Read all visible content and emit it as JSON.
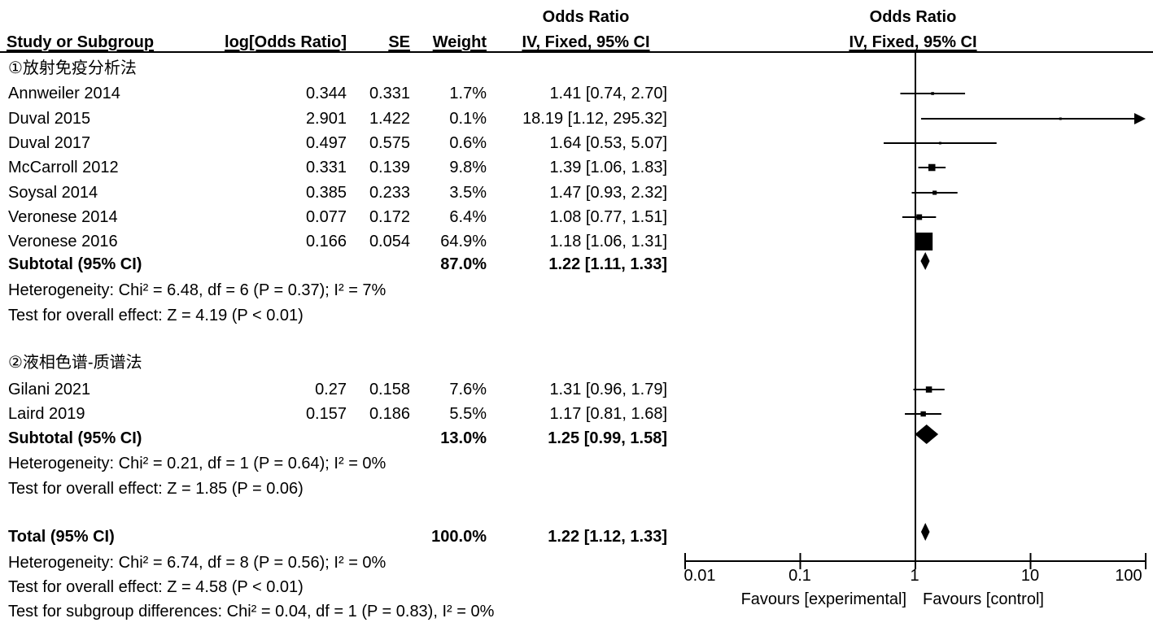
{
  "header": {
    "col_study": "Study or Subgroup",
    "col_logor": "log[Odds Ratio]",
    "col_se": "SE",
    "col_weight": "Weight",
    "col_or_top": "Odds Ratio",
    "col_or_bottom": "IV, Fixed, 95% CI",
    "plot_top": "Odds Ratio",
    "plot_bottom": "IV, Fixed, 95% CI"
  },
  "groups": [
    {
      "title": "①放射免疫分析法",
      "studies": [
        {
          "name": "Annweiler 2014",
          "logor": "0.344",
          "se": "0.331",
          "weight": "1.7%",
          "ci": "1.41 [0.74, 2.70]"
        },
        {
          "name": "Duval 2015",
          "logor": "2.901",
          "se": "1.422",
          "weight": "0.1%",
          "ci": "18.19 [1.12, 295.32]"
        },
        {
          "name": "Duval 2017",
          "logor": "0.497",
          "se": "0.575",
          "weight": "0.6%",
          "ci": "1.64 [0.53, 5.07]"
        },
        {
          "name": "McCarroll 2012",
          "logor": "0.331",
          "se": "0.139",
          "weight": "9.8%",
          "ci": "1.39 [1.06, 1.83]"
        },
        {
          "name": "Soysal 2014",
          "logor": "0.385",
          "se": "0.233",
          "weight": "3.5%",
          "ci": "1.47 [0.93, 2.32]"
        },
        {
          "name": "Veronese 2014",
          "logor": "0.077",
          "se": "0.172",
          "weight": "6.4%",
          "ci": "1.08 [0.77, 1.51]"
        },
        {
          "name": "Veronese 2016",
          "logor": "0.166",
          "se": "0.054",
          "weight": "64.9%",
          "ci": "1.18 [1.06, 1.31]"
        }
      ],
      "subtotal": {
        "label": "Subtotal (95% CI)",
        "weight": "87.0%",
        "ci": "1.22 [1.11, 1.33]"
      },
      "heterogeneity": "Heterogeneity: Chi² = 6.48, df = 6 (P = 0.37); I² = 7%",
      "overall": "Test for overall effect: Z = 4.19 (P < 0.01)"
    },
    {
      "title": "②液相色谱-质谱法",
      "studies": [
        {
          "name": "Gilani 2021",
          "logor": "0.27",
          "se": "0.158",
          "weight": "7.6%",
          "ci": "1.31 [0.96, 1.79]"
        },
        {
          "name": "Laird 2019",
          "logor": "0.157",
          "se": "0.186",
          "weight": "5.5%",
          "ci": "1.17 [0.81, 1.68]"
        }
      ],
      "subtotal": {
        "label": "Subtotal (95% CI)",
        "weight": "13.0%",
        "ci": "1.25 [0.99, 1.58]"
      },
      "heterogeneity": "Heterogeneity: Chi² = 0.21, df = 1 (P = 0.64); I² = 0%",
      "overall": "Test for overall effect: Z = 1.85 (P = 0.06)"
    }
  ],
  "total": {
    "label": "Total (95% CI)",
    "weight": "100.0%",
    "ci": "1.22 [1.12, 1.33]",
    "heterogeneity": "Heterogeneity: Chi² = 6.74, df = 8 (P = 0.56); I² = 0%",
    "overall": "Test for overall effect: Z = 4.58 (P < 0.01)",
    "subgroup": "Test for subgroup differences: Chi² = 0.04, df = 1 (P = 0.83), I² = 0%"
  },
  "axis": {
    "ticks": [
      "0.01",
      "0.1",
      "1",
      "10",
      "100"
    ],
    "favours_left": "Favours [experimental]",
    "favours_right": "Favours [control]"
  },
  "chart_data": {
    "type": "forest",
    "scale": "log",
    "xlim": [
      0.01,
      100
    ],
    "reference_line": 1,
    "studies": [
      {
        "name": "Annweiler 2014",
        "or": 1.41,
        "lo": 0.74,
        "hi": 2.7,
        "weight": 1.7
      },
      {
        "name": "Duval 2015",
        "or": 18.19,
        "lo": 1.12,
        "hi": 295.32,
        "weight": 0.1
      },
      {
        "name": "Duval 2017",
        "or": 1.64,
        "lo": 0.53,
        "hi": 5.07,
        "weight": 0.6
      },
      {
        "name": "McCarroll 2012",
        "or": 1.39,
        "lo": 1.06,
        "hi": 1.83,
        "weight": 9.8
      },
      {
        "name": "Soysal 2014",
        "or": 1.47,
        "lo": 0.93,
        "hi": 2.32,
        "weight": 3.5
      },
      {
        "name": "Veronese 2014",
        "or": 1.08,
        "lo": 0.77,
        "hi": 1.51,
        "weight": 6.4
      },
      {
        "name": "Veronese 2016",
        "or": 1.18,
        "lo": 1.06,
        "hi": 1.31,
        "weight": 64.9
      },
      {
        "name": "Gilani 2021",
        "or": 1.31,
        "lo": 0.96,
        "hi": 1.79,
        "weight": 7.6
      },
      {
        "name": "Laird 2019",
        "or": 1.17,
        "lo": 0.81,
        "hi": 1.68,
        "weight": 5.5
      }
    ],
    "subtotals": [
      {
        "name": "Subtotal 1",
        "or": 1.22,
        "lo": 1.11,
        "hi": 1.33
      },
      {
        "name": "Subtotal 2",
        "or": 1.25,
        "lo": 0.99,
        "hi": 1.58
      },
      {
        "name": "Total",
        "or": 1.22,
        "lo": 1.12,
        "hi": 1.33
      }
    ]
  }
}
